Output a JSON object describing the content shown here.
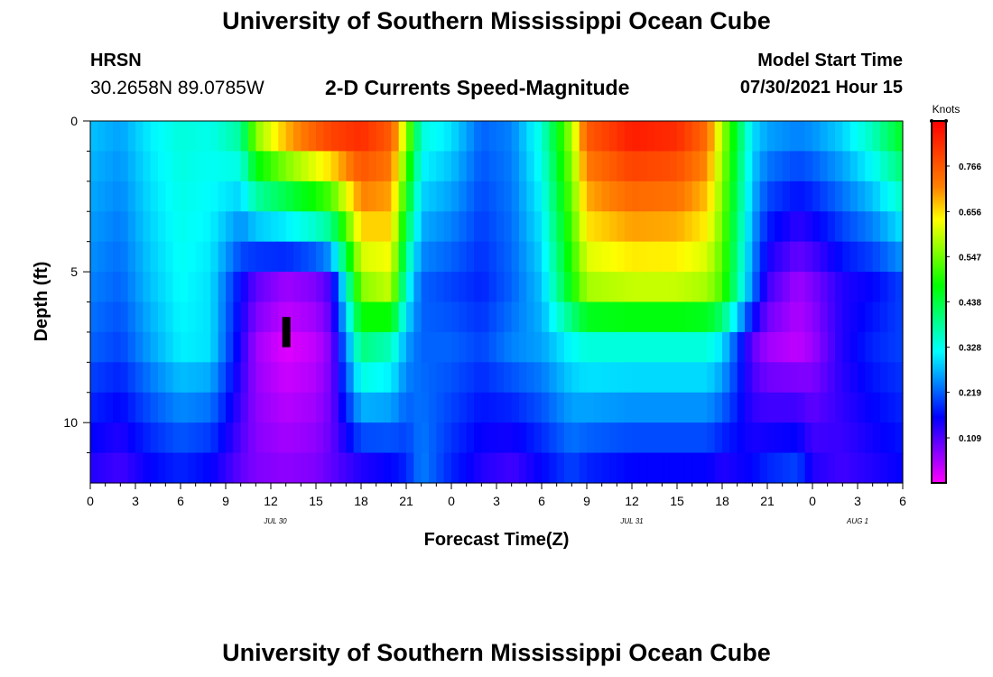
{
  "header": {
    "title": "University of Southern Mississippi Ocean Cube",
    "station": "HRSN",
    "coords": "30.2658N  89.0785W",
    "subtitle": "2-D Currents Speed-Magnitude",
    "model_start_label": "Model Start Time",
    "model_start_value": "07/30/2021 Hour 15"
  },
  "footer": {
    "title": "University of Southern Mississippi Ocean Cube"
  },
  "chart_data": {
    "type": "heatmap",
    "title": "2-D Currents Speed-Magnitude",
    "xlabel": "Forecast Time(Z)",
    "ylabel": "Depth (ft)",
    "x_range_hours": [
      0,
      54
    ],
    "y_range_ft": [
      0,
      12
    ],
    "x_tick_labels": [
      "0",
      "3",
      "6",
      "9",
      "12",
      "15",
      "18",
      "21",
      "0",
      "3",
      "6",
      "9",
      "12",
      "15",
      "18",
      "21",
      "0",
      "3",
      "6"
    ],
    "y_tick_labels": [
      "0",
      "5",
      "10"
    ],
    "y_tick_values": [
      0,
      5,
      10
    ],
    "date_labels": [
      {
        "label": "JUL 30",
        "hour": 12.3
      },
      {
        "label": "JUL 31",
        "hour": 36
      },
      {
        "label": "AUG 1",
        "hour": 51
      }
    ],
    "colorbar": {
      "title": "Knots",
      "min": 0.0,
      "max": 0.875,
      "ticks": [
        "0.766",
        "0.656",
        "0.547",
        "0.438",
        "0.328",
        "0.219",
        "0.109"
      ],
      "tick_values": [
        0.766,
        0.656,
        0.547,
        0.438,
        0.328,
        0.219,
        0.109
      ],
      "colors": [
        "#ff00ff",
        "#8000ff",
        "#0000ff",
        "#0080ff",
        "#00ffff",
        "#00ff80",
        "#00ff00",
        "#80ff00",
        "#ffff00",
        "#ff8000",
        "#ff4000",
        "#ff0000"
      ]
    },
    "current_time_marker": {
      "hour": 13,
      "depth_ft": [
        6.5,
        7.5
      ]
    },
    "depth_levels_ft": [
      0.5,
      1.5,
      2.5,
      3.5,
      4.5,
      5.5,
      6.5,
      7.5,
      8.5,
      9.5,
      10.5,
      11.5
    ],
    "speed_knots_keyframes": {
      "hours": [
        0,
        2,
        4,
        6,
        8,
        10,
        11,
        13,
        15,
        16,
        18,
        20,
        21,
        22,
        24,
        26,
        28,
        30,
        32,
        33,
        36,
        39,
        41,
        42,
        44,
        45,
        47,
        48,
        50,
        52,
        54
      ],
      "surface": [
        0.28,
        0.26,
        0.31,
        0.34,
        0.33,
        0.38,
        0.56,
        0.68,
        0.76,
        0.79,
        0.82,
        0.76,
        0.58,
        0.34,
        0.3,
        0.22,
        0.24,
        0.34,
        0.58,
        0.76,
        0.84,
        0.82,
        0.74,
        0.58,
        0.3,
        0.26,
        0.24,
        0.25,
        0.29,
        0.36,
        0.46
      ],
      "mid_5_5ft": [
        0.24,
        0.22,
        0.28,
        0.32,
        0.3,
        0.16,
        0.1,
        0.06,
        0.08,
        0.12,
        0.56,
        0.6,
        0.34,
        0.22,
        0.2,
        0.18,
        0.22,
        0.28,
        0.48,
        0.58,
        0.6,
        0.6,
        0.58,
        0.52,
        0.24,
        0.12,
        0.06,
        0.08,
        0.14,
        0.16,
        0.2
      ],
      "mid_7_5ft": [
        0.22,
        0.2,
        0.26,
        0.31,
        0.3,
        0.14,
        0.06,
        0.02,
        0.04,
        0.08,
        0.4,
        0.36,
        0.26,
        0.22,
        0.22,
        0.2,
        0.24,
        0.26,
        0.32,
        0.34,
        0.34,
        0.34,
        0.34,
        0.3,
        0.1,
        0.06,
        0.04,
        0.06,
        0.14,
        0.18,
        0.2
      ],
      "bottom": [
        0.14,
        0.12,
        0.16,
        0.18,
        0.16,
        0.1,
        0.08,
        0.07,
        0.08,
        0.1,
        0.14,
        0.16,
        0.18,
        0.24,
        0.18,
        0.14,
        0.12,
        0.16,
        0.2,
        0.18,
        0.16,
        0.16,
        0.16,
        0.14,
        0.16,
        0.18,
        0.2,
        0.14,
        0.12,
        0.14,
        0.16
      ]
    }
  }
}
